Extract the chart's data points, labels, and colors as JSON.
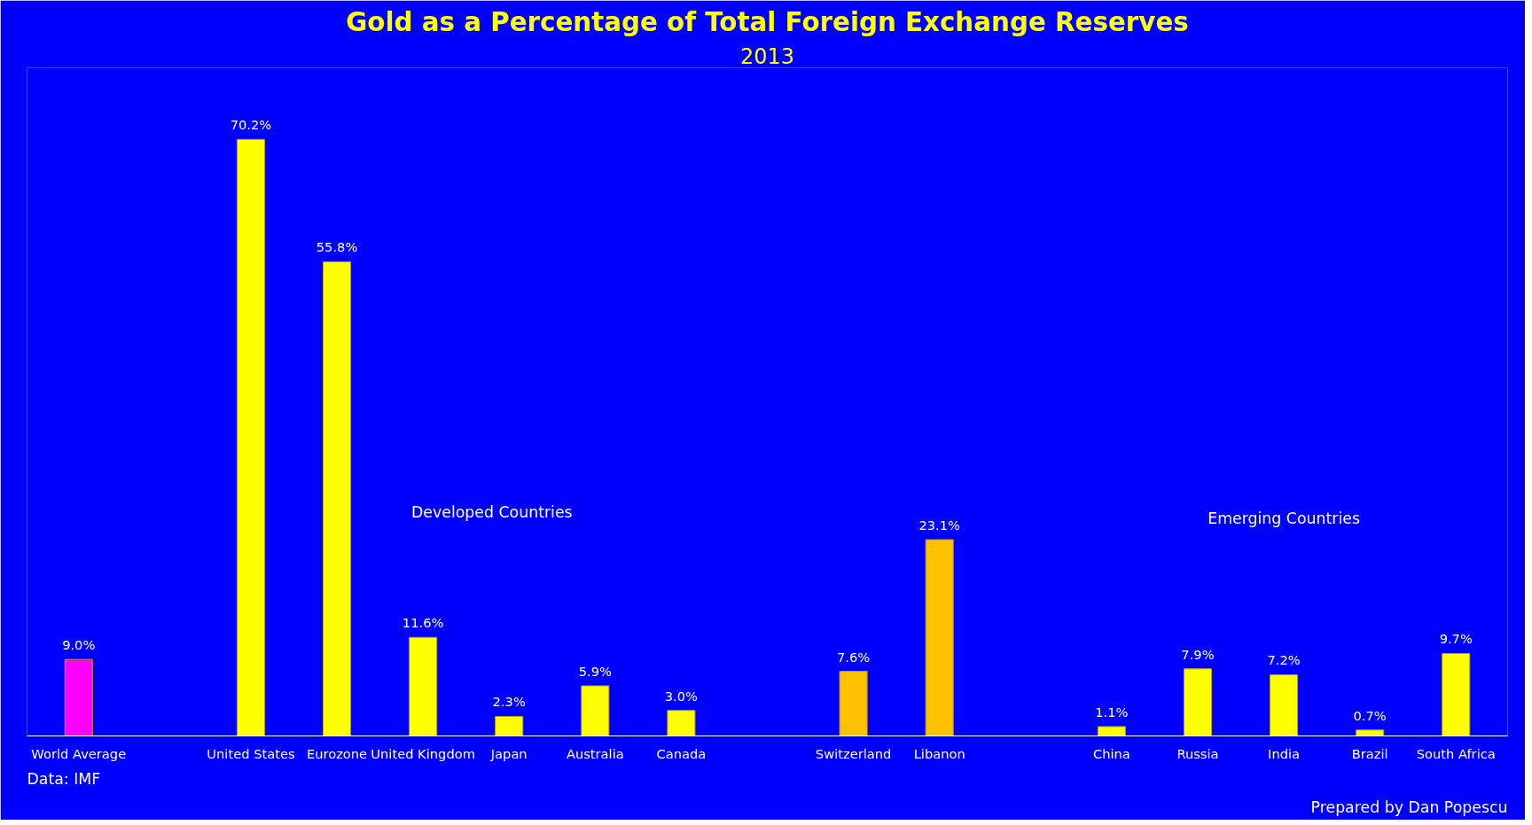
{
  "chart_data": {
    "type": "bar",
    "title": "Gold as a Percentage of Total Foreign Exchange Reserves",
    "subtitle": "2013",
    "categories": [
      "World Average",
      null,
      "United States",
      "Eurozone",
      "United Kingdom",
      "Japan",
      "Australia",
      "Canada",
      null,
      "Switzerland",
      "Libanon",
      null,
      "China",
      "Russia",
      "India",
      "Brazil",
      "South Africa"
    ],
    "values": [
      9.0,
      null,
      70.2,
      55.8,
      11.6,
      2.3,
      5.9,
      3.0,
      null,
      7.6,
      23.1,
      null,
      1.1,
      7.9,
      7.2,
      0.7,
      9.7
    ],
    "colors": [
      "#ff00ff",
      null,
      "#ffff00",
      "#ffff00",
      "#ffff00",
      "#ffff00",
      "#ffff00",
      "#ffff00",
      null,
      "#ffc000",
      "#ffc000",
      null,
      "#ffff00",
      "#ffff00",
      "#ffff00",
      "#ffff00",
      "#ffff00"
    ],
    "value_labels": [
      "9.0%",
      null,
      "70.2%",
      "55.8%",
      "11.6%",
      "2.3%",
      "5.9%",
      "3.0%",
      null,
      "7.6%",
      "23.1%",
      null,
      "1.1%",
      "7.9%",
      "7.2%",
      "0.7%",
      "9.7%"
    ],
    "annotations": [
      "Developed Countries",
      "Emerging Countries",
      "Data: IMF",
      "Prepared by Dan Popescu"
    ],
    "grid": false
  }
}
